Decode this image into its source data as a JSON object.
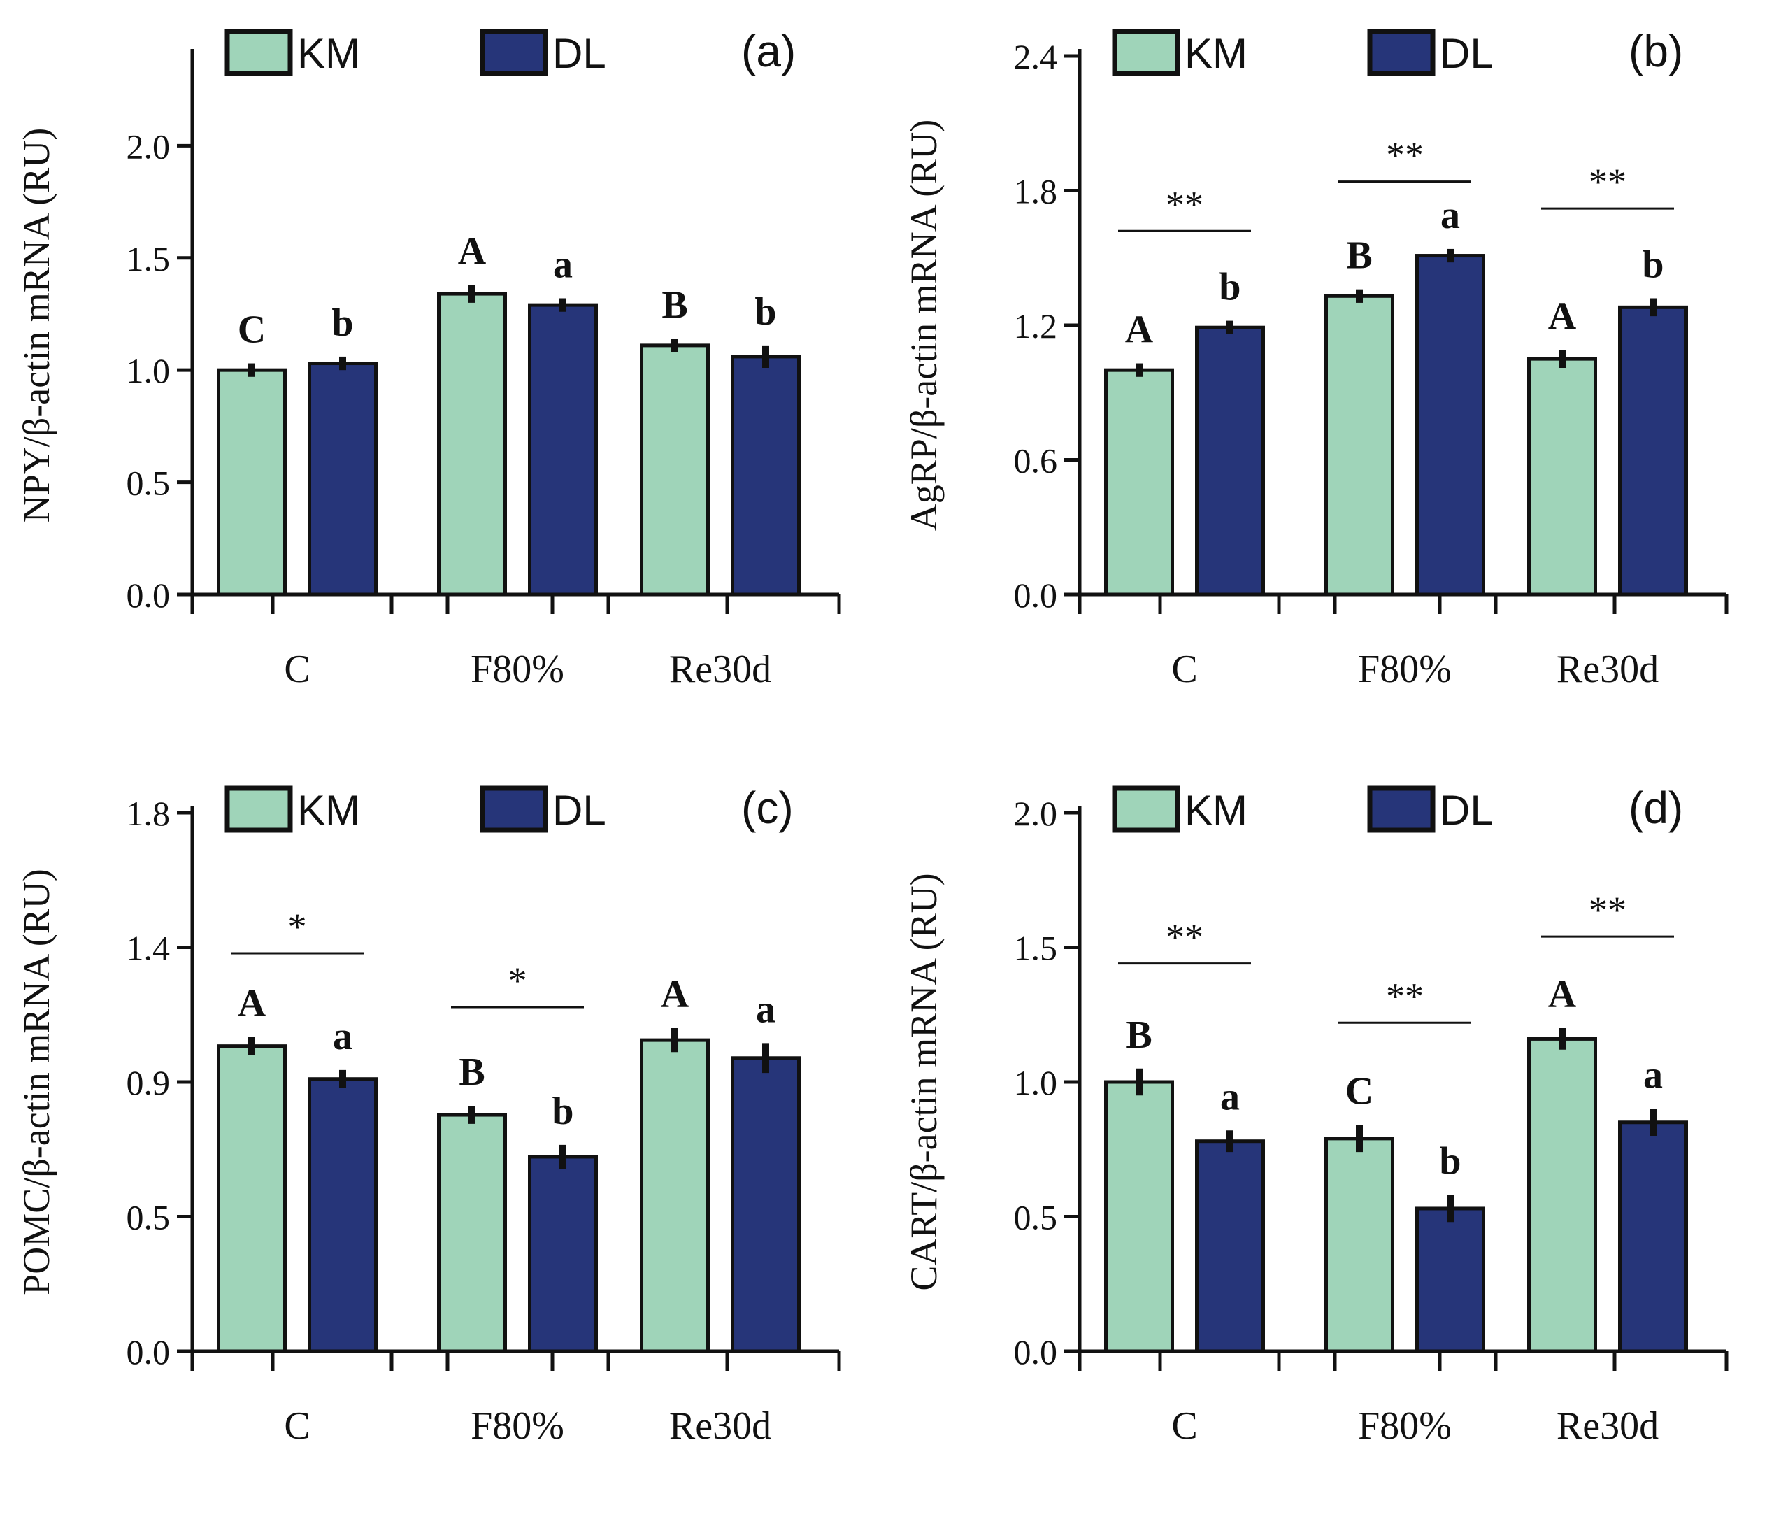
{
  "chart_data": [
    {
      "type": "bar",
      "panel_label": "(a)",
      "ylabel": "NPY/β-actin mRNA (RU)",
      "xlabel": "",
      "categories": [
        "C",
        "F80%",
        "Re30d"
      ],
      "ylim": [
        0,
        2.4
      ],
      "yticks": [
        "0.0",
        "0.5",
        "1.0",
        "1.5",
        "2.0"
      ],
      "ytick_values": [
        0.0,
        0.5,
        1.0,
        1.5,
        2.0
      ],
      "legend": [
        "KM",
        "DL"
      ],
      "colors": {
        "KM": "#9fd4b9",
        "DL": "#263579"
      },
      "series": [
        {
          "name": "KM",
          "values": [
            1.0,
            1.34,
            1.11
          ],
          "errors": [
            0.03,
            0.04,
            0.03
          ],
          "letters": [
            "C",
            "A",
            "B"
          ]
        },
        {
          "name": "DL",
          "values": [
            1.03,
            1.29,
            1.06
          ],
          "errors": [
            0.03,
            0.03,
            0.05
          ],
          "letters": [
            "b",
            "a",
            "b"
          ]
        }
      ],
      "significance": [
        null,
        null,
        null
      ]
    },
    {
      "type": "bar",
      "panel_label": "(b)",
      "ylabel": "AgRP/β-actin mRNA (RU)",
      "xlabel": "",
      "categories": [
        "C",
        "F80%",
        "Re30d"
      ],
      "ylim": [
        0,
        2.4
      ],
      "yticks": [
        "0.0",
        "0.6",
        "1.2",
        "1.8",
        "2.4"
      ],
      "ytick_values": [
        0.0,
        0.6,
        1.2,
        1.8,
        2.4
      ],
      "legend": [
        "KM",
        "DL"
      ],
      "colors": {
        "KM": "#9fd4b9",
        "DL": "#263579"
      },
      "series": [
        {
          "name": "KM",
          "values": [
            1.0,
            1.33,
            1.05
          ],
          "errors": [
            0.03,
            0.03,
            0.04
          ],
          "letters": [
            "A",
            "B",
            "A"
          ]
        },
        {
          "name": "DL",
          "values": [
            1.19,
            1.51,
            1.28
          ],
          "errors": [
            0.03,
            0.03,
            0.04
          ],
          "letters": [
            "b",
            "a",
            "b"
          ]
        }
      ],
      "significance": [
        {
          "label": "**",
          "y": 1.62
        },
        {
          "label": "**",
          "y": 1.84
        },
        {
          "label": "**",
          "y": 1.72
        }
      ]
    },
    {
      "type": "bar",
      "panel_label": "(c)",
      "ylabel": "POMC/β-actin mRNA (RU)",
      "xlabel": "",
      "categories": [
        "C",
        "F80%",
        "Re30d"
      ],
      "ylim": [
        0,
        1.8
      ],
      "yticks": [
        "0.0",
        "0.5",
        "0.9",
        "1.4",
        "1.8"
      ],
      "ytick_values": [
        0.0,
        0.45,
        0.9,
        1.35,
        1.8
      ],
      "legend": [
        "KM",
        "DL"
      ],
      "colors": {
        "KM": "#9fd4b9",
        "DL": "#263579"
      },
      "series": [
        {
          "name": "KM",
          "values": [
            1.02,
            0.79,
            1.04
          ],
          "errors": [
            0.03,
            0.03,
            0.04
          ],
          "letters": [
            "A",
            "B",
            "A"
          ]
        },
        {
          "name": "DL",
          "values": [
            0.91,
            0.65,
            0.98
          ],
          "errors": [
            0.03,
            0.04,
            0.05
          ],
          "letters": [
            "a",
            "b",
            "a"
          ]
        }
      ],
      "significance": [
        {
          "label": "*",
          "y": 1.33
        },
        {
          "label": "*",
          "y": 1.15
        },
        null
      ]
    },
    {
      "type": "bar",
      "panel_label": "(d)",
      "ylabel": "CART/β-actin mRNA (RU)",
      "xlabel": "",
      "categories": [
        "C",
        "F80%",
        "Re30d"
      ],
      "ylim": [
        0,
        2.0
      ],
      "yticks": [
        "0.0",
        "0.5",
        "1.0",
        "1.5",
        "2.0"
      ],
      "ytick_values": [
        0.0,
        0.5,
        1.0,
        1.5,
        2.0
      ],
      "legend": [
        "KM",
        "DL"
      ],
      "colors": {
        "KM": "#9fd4b9",
        "DL": "#263579"
      },
      "series": [
        {
          "name": "KM",
          "values": [
            1.0,
            0.79,
            1.16
          ],
          "errors": [
            0.05,
            0.05,
            0.04
          ],
          "letters": [
            "B",
            "C",
            "A"
          ]
        },
        {
          "name": "DL",
          "values": [
            0.78,
            0.53,
            0.85
          ],
          "errors": [
            0.04,
            0.05,
            0.05
          ],
          "letters": [
            "a",
            "b",
            "a"
          ]
        }
      ],
      "significance": [
        {
          "label": "**",
          "y": 1.44
        },
        {
          "label": "**",
          "y": 1.22
        },
        {
          "label": "**",
          "y": 1.54
        }
      ]
    }
  ]
}
